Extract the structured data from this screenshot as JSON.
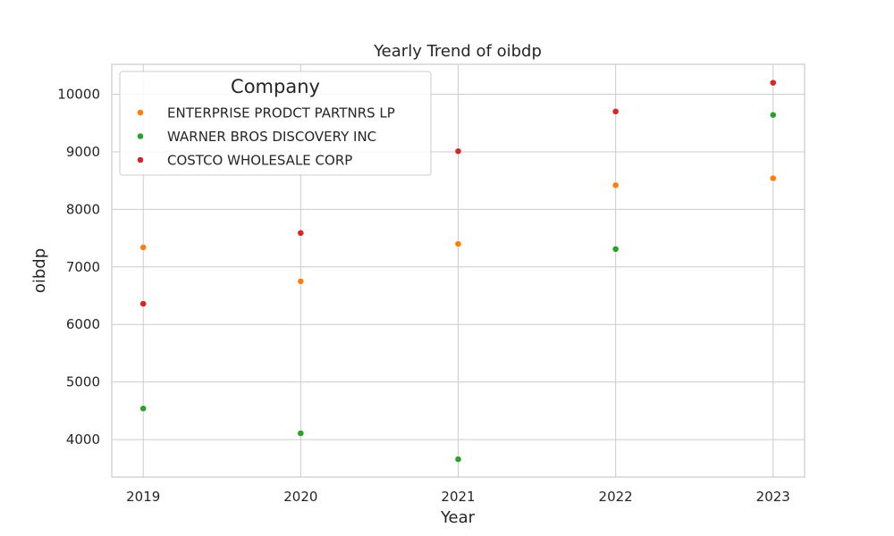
{
  "chart_data": {
    "type": "scatter",
    "title": "Yearly Trend of oibdp",
    "xlabel": "Year",
    "ylabel": "oibdp",
    "x": [
      2019,
      2020,
      2021,
      2022,
      2023
    ],
    "x_ticks": [
      "2019",
      "2020",
      "2021",
      "2022",
      "2023"
    ],
    "y_ticks": [
      "4000",
      "5000",
      "6000",
      "7000",
      "8000",
      "9000",
      "10000"
    ],
    "y_tick_values": [
      4000,
      5000,
      6000,
      7000,
      8000,
      9000,
      10000
    ],
    "xlim": [
      2018.8,
      2023.2
    ],
    "ylim": [
      3350,
      10520
    ],
    "grid": true,
    "legend": {
      "title": "Company",
      "placement": "top-left"
    },
    "series": [
      {
        "name": "ENTERPRISE PRODCT PARTNRS LP",
        "color": "#ff7f0e",
        "values": [
          7340,
          6750,
          7400,
          8420,
          8540
        ]
      },
      {
        "name": "WARNER BROS DISCOVERY INC",
        "color": "#2ca02c",
        "values": [
          4540,
          4110,
          3660,
          7310,
          9640
        ]
      },
      {
        "name": "COSTCO WHOLESALE CORP",
        "color": "#d62728",
        "values": [
          6360,
          7590,
          9010,
          9700,
          10200
        ]
      }
    ]
  }
}
